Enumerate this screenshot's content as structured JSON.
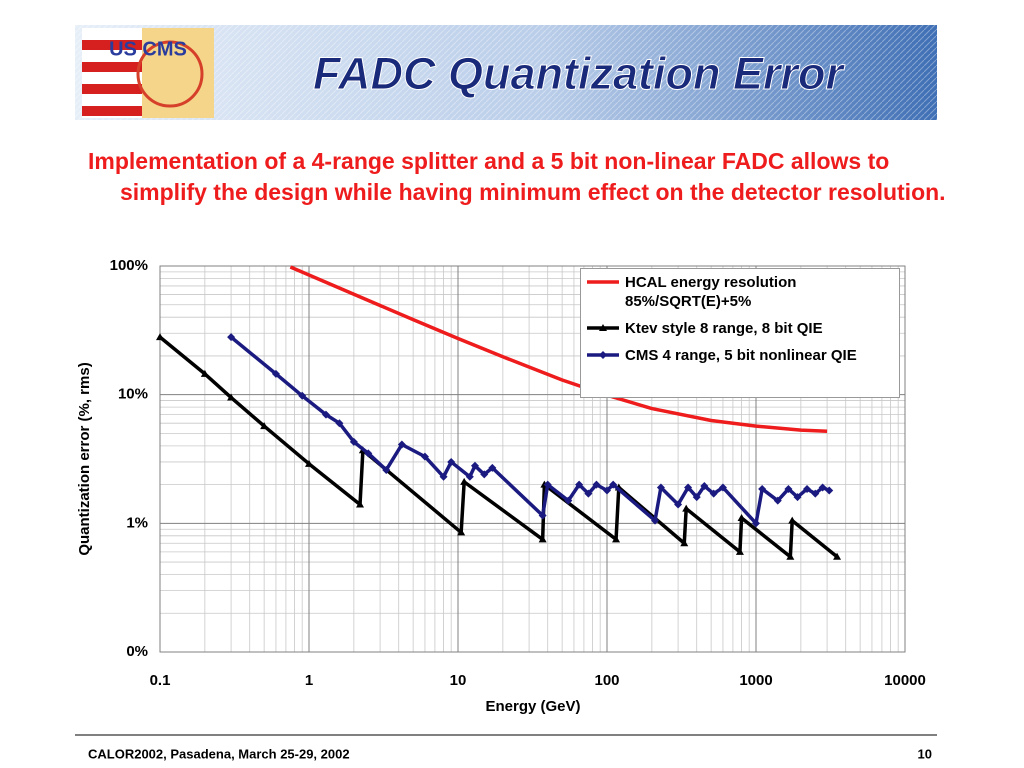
{
  "slide": {
    "logo": "US CMS",
    "title": "FADC Quantization Error",
    "bullet": "Implementation of a 4-range splitter and a 5 bit non-linear FADC allows to simplify the design while having minimum effect on the detector resolution.",
    "footer": "CALOR2002, Pasadena, March 25-29, 2002",
    "page": "10"
  },
  "chart_data": {
    "type": "line",
    "x_label": "Energy (GeV)",
    "y_label": "Quantization error (%, rms)",
    "log_x": true,
    "log_y": true,
    "grid": true,
    "xlim": [
      0.1,
      10000
    ],
    "xticks": [
      0.1,
      1,
      10,
      100,
      1000,
      10000
    ],
    "ylim": [
      0.1,
      100
    ],
    "yticks": [
      {
        "value": 0.1,
        "label": "0%"
      },
      {
        "value": 1,
        "label": "1%"
      },
      {
        "value": 10,
        "label": "10%"
      },
      {
        "value": 100,
        "label": "100%"
      }
    ],
    "legend": "top-right",
    "series": [
      {
        "name": "HCAL energy resolution 85%/SQRT(E)+5%",
        "color": "#ee1c1c",
        "marker": null,
        "x": [
          0.75,
          1,
          2,
          5,
          10,
          20,
          50,
          100,
          200,
          500,
          1000,
          2000,
          3000
        ],
        "values": [
          98.3,
          85.1,
          60.3,
          38.3,
          27.3,
          19.7,
          13.0,
          9.9,
          7.8,
          6.3,
          5.7,
          5.3,
          5.2
        ]
      },
      {
        "name": "Ktev style 8 range, 8 bit QIE",
        "color": "#000000",
        "marker": "triangle",
        "x": [
          0.1,
          0.2,
          0.3,
          0.5,
          1,
          2.2,
          2.3,
          10.5,
          11,
          37,
          38,
          115,
          120,
          330,
          340,
          780,
          800,
          1700,
          1750,
          3500
        ],
        "values": [
          28,
          14.5,
          9.5,
          5.7,
          2.9,
          1.4,
          3.7,
          0.85,
          2.1,
          0.75,
          2.0,
          0.75,
          1.9,
          0.7,
          1.3,
          0.6,
          1.1,
          0.55,
          1.05,
          0.55
        ]
      },
      {
        "name": "CMS 4 range, 5 bit nonlinear QIE",
        "color": "#1a1a80",
        "marker": "diamond",
        "x": [
          0.3,
          0.6,
          0.9,
          1.3,
          1.6,
          2,
          2.5,
          3.3,
          4.2,
          6,
          8,
          9,
          12,
          13,
          15,
          17,
          37,
          40,
          55,
          65,
          75,
          85,
          100,
          110,
          210,
          230,
          300,
          350,
          400,
          450,
          520,
          600,
          1000,
          1100,
          1400,
          1650,
          1900,
          2200,
          2500,
          2800,
          3100
        ],
        "values": [
          28,
          14.5,
          9.8,
          7,
          6,
          4.3,
          3.5,
          2.6,
          4.1,
          3.3,
          2.3,
          3.0,
          2.3,
          2.8,
          2.4,
          2.7,
          1.15,
          2.0,
          1.5,
          2.0,
          1.7,
          2.0,
          1.8,
          2.0,
          1.05,
          1.9,
          1.4,
          1.9,
          1.6,
          1.95,
          1.7,
          1.9,
          1.0,
          1.85,
          1.5,
          1.85,
          1.6,
          1.85,
          1.7,
          1.9,
          1.8
        ]
      }
    ]
  }
}
